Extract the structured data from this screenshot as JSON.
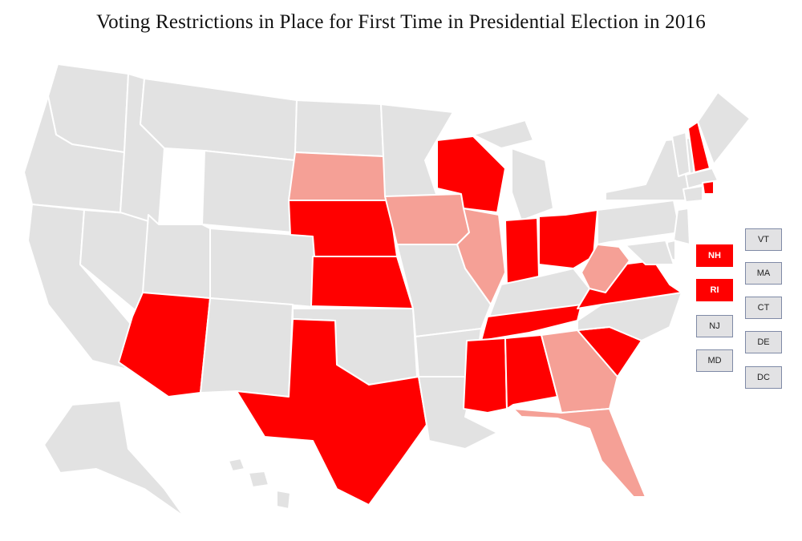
{
  "title": "Voting Restrictions in Place for First Time in Presidential Election in 2016",
  "colors": {
    "none": "#e2e2e2",
    "strict": "#ff0000",
    "partial": "#f5a096",
    "border": "#ffffff"
  },
  "small_states": [
    {
      "abbr": "NH",
      "category": "strict"
    },
    {
      "abbr": "RI",
      "category": "strict"
    },
    {
      "abbr": "NJ",
      "category": "none"
    },
    {
      "abbr": "MD",
      "category": "none"
    },
    {
      "abbr": "VT",
      "category": "none"
    },
    {
      "abbr": "MA",
      "category": "none"
    },
    {
      "abbr": "CT",
      "category": "none"
    },
    {
      "abbr": "DE",
      "category": "none"
    },
    {
      "abbr": "DC",
      "category": "none"
    }
  ],
  "states": [
    {
      "abbr": "WA",
      "category": "none"
    },
    {
      "abbr": "OR",
      "category": "none"
    },
    {
      "abbr": "CA",
      "category": "none"
    },
    {
      "abbr": "NV",
      "category": "none"
    },
    {
      "abbr": "ID",
      "category": "none"
    },
    {
      "abbr": "MT",
      "category": "none"
    },
    {
      "abbr": "WY",
      "category": "none"
    },
    {
      "abbr": "UT",
      "category": "none"
    },
    {
      "abbr": "AZ",
      "category": "strict"
    },
    {
      "abbr": "CO",
      "category": "none"
    },
    {
      "abbr": "NM",
      "category": "none"
    },
    {
      "abbr": "ND",
      "category": "none"
    },
    {
      "abbr": "SD",
      "category": "partial"
    },
    {
      "abbr": "NE",
      "category": "strict"
    },
    {
      "abbr": "KS",
      "category": "strict"
    },
    {
      "abbr": "OK",
      "category": "none"
    },
    {
      "abbr": "TX",
      "category": "strict"
    },
    {
      "abbr": "MN",
      "category": "none"
    },
    {
      "abbr": "IA",
      "category": "partial"
    },
    {
      "abbr": "MO",
      "category": "none"
    },
    {
      "abbr": "AR",
      "category": "none"
    },
    {
      "abbr": "LA",
      "category": "none"
    },
    {
      "abbr": "WI",
      "category": "strict"
    },
    {
      "abbr": "IL",
      "category": "partial"
    },
    {
      "abbr": "MI",
      "category": "none"
    },
    {
      "abbr": "IN",
      "category": "strict"
    },
    {
      "abbr": "OH",
      "category": "strict"
    },
    {
      "abbr": "KY",
      "category": "none"
    },
    {
      "abbr": "TN",
      "category": "strict"
    },
    {
      "abbr": "MS",
      "category": "strict"
    },
    {
      "abbr": "AL",
      "category": "strict"
    },
    {
      "abbr": "GA",
      "category": "partial"
    },
    {
      "abbr": "FL",
      "category": "partial"
    },
    {
      "abbr": "SC",
      "category": "strict"
    },
    {
      "abbr": "NC",
      "category": "none"
    },
    {
      "abbr": "VA",
      "category": "strict"
    },
    {
      "abbr": "WV",
      "category": "partial"
    },
    {
      "abbr": "PA",
      "category": "none"
    },
    {
      "abbr": "NY",
      "category": "none"
    },
    {
      "abbr": "VT",
      "category": "none"
    },
    {
      "abbr": "NH",
      "category": "strict"
    },
    {
      "abbr": "ME",
      "category": "none"
    },
    {
      "abbr": "MA",
      "category": "none"
    },
    {
      "abbr": "RI",
      "category": "strict"
    },
    {
      "abbr": "CT",
      "category": "none"
    },
    {
      "abbr": "NJ",
      "category": "none"
    },
    {
      "abbr": "DE",
      "category": "none"
    },
    {
      "abbr": "MD",
      "category": "none"
    },
    {
      "abbr": "AK",
      "category": "none"
    },
    {
      "abbr": "HI",
      "category": "none"
    }
  ]
}
